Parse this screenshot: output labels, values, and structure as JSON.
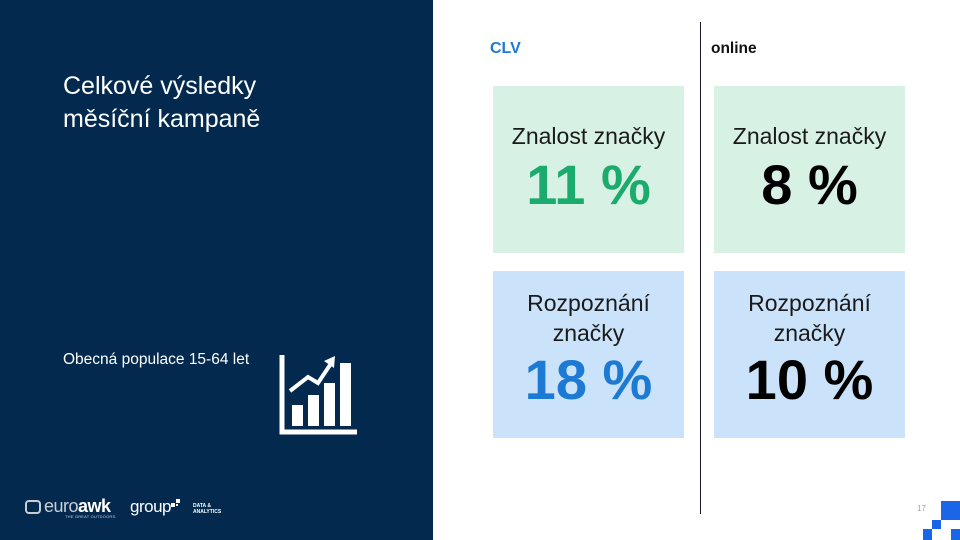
{
  "slide": {
    "title_lines": [
      "Celkové výsledky",
      "měsíční kampaně"
    ],
    "subtitle": "Obecná populace 15-64 let",
    "page_number": "17"
  },
  "logos": {
    "euro_light": "euro",
    "euro_bold": "awk",
    "euro_tagline": "THE GREAT OUTDOORS.",
    "group": "group",
    "data_analytics_line1": "DATA &",
    "data_analytics_line2": "ANALYTICS"
  },
  "columns": {
    "clv": {
      "header": "CLV",
      "awareness_label": "Znalost značky",
      "awareness_value": "11 %",
      "recognition_label_line1": "Rozpoznání",
      "recognition_label_line2": "značky",
      "recognition_value": "18 %"
    },
    "online": {
      "header": "online",
      "awareness_label": "Znalost značky",
      "awareness_value": "8 %",
      "recognition_label_line1": "Rozpoznání",
      "recognition_label_line2": "značky",
      "recognition_value": "10 %"
    }
  },
  "colors": {
    "navy_panel": "#032a4e",
    "awareness_bg": "#d7f2e4",
    "recognition_bg": "#cbe3fa",
    "clv_awareness_value": "#1aab6d",
    "clv_recognition_value": "#1c7ad4",
    "online_value": "#000000",
    "accent_squares": "#1a66e6"
  },
  "icons": [
    "growth-bar-chart-icon"
  ]
}
